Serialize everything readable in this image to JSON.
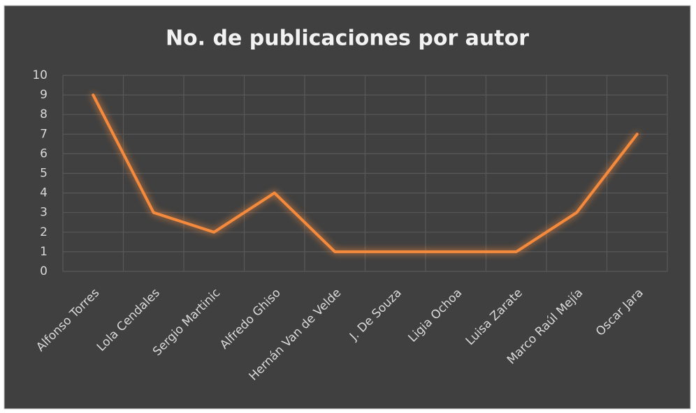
{
  "chart_data": {
    "type": "line",
    "title": "No. de publicaciones por autor",
    "categories": [
      "Alfonso Torres",
      "Lola Cendales",
      "Sergio Martinic",
      "Alfredo Ghiso",
      "Hernán Van de Velde",
      "J. De Souza",
      "Ligia Ochoa",
      "Luisa Zarate",
      "Marco Raúl Mejía",
      "Oscar Jara"
    ],
    "values": [
      9,
      3,
      2,
      4,
      1,
      1,
      1,
      1,
      3,
      7
    ],
    "color": "#f58a3c",
    "ylim": [
      0,
      10
    ],
    "yticks": [
      0,
      1,
      2,
      3,
      4,
      5,
      6,
      7,
      8,
      9,
      10
    ],
    "grid": true
  }
}
